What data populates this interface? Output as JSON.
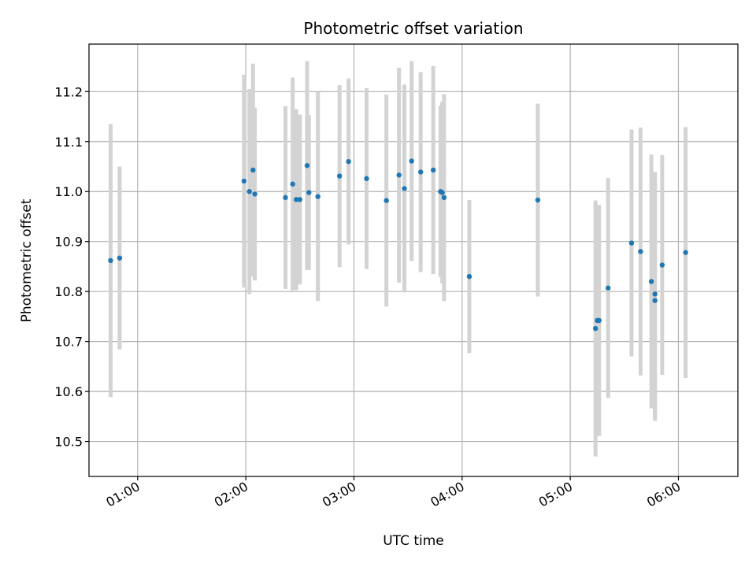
{
  "chart_data": {
    "type": "scatter",
    "title": "Photometric offset variation",
    "xlabel": "UTC time",
    "ylabel": "Photometric offset",
    "x_ticks": [
      "01:00",
      "02:00",
      "03:00",
      "04:00",
      "05:00",
      "06:00"
    ],
    "y_ticks": [
      "10.5",
      "10.6",
      "10.7",
      "10.8",
      "10.9",
      "11.0",
      "11.1",
      "11.2"
    ],
    "xlim": [
      "00:33",
      "06:33"
    ],
    "ylim": [
      10.43,
      11.295
    ],
    "grid": true,
    "colors": {
      "point": "#1f77b4",
      "errorbar": "#d3d3d3",
      "grid": "#b0b0b0"
    },
    "points": [
      {
        "x": "00:45",
        "y": 10.862,
        "err": 0.273
      },
      {
        "x": "00:50",
        "y": 10.867,
        "err": 0.183
      },
      {
        "x": "01:59",
        "y": 11.021,
        "err": 0.213
      },
      {
        "x": "02:02",
        "y": 11.0,
        "err": 0.205
      },
      {
        "x": "02:04",
        "y": 11.043,
        "err": 0.213
      },
      {
        "x": "02:05",
        "y": 10.995,
        "err": 0.173
      },
      {
        "x": "02:22",
        "y": 10.988,
        "err": 0.183
      },
      {
        "x": "02:26",
        "y": 11.015,
        "err": 0.213
      },
      {
        "x": "02:28",
        "y": 10.984,
        "err": 0.181
      },
      {
        "x": "02:30",
        "y": 10.984,
        "err": 0.17
      },
      {
        "x": "02:34",
        "y": 11.052,
        "err": 0.209
      },
      {
        "x": "02:35",
        "y": 10.998,
        "err": 0.155
      },
      {
        "x": "02:40",
        "y": 10.99,
        "err": 0.209
      },
      {
        "x": "02:52",
        "y": 11.031,
        "err": 0.182
      },
      {
        "x": "02:57",
        "y": 11.06,
        "err": 0.166
      },
      {
        "x": "03:07",
        "y": 11.026,
        "err": 0.181
      },
      {
        "x": "03:18",
        "y": 10.982,
        "err": 0.212
      },
      {
        "x": "03:25",
        "y": 11.033,
        "err": 0.215
      },
      {
        "x": "03:28",
        "y": 11.006,
        "err": 0.208
      },
      {
        "x": "03:32",
        "y": 11.061,
        "err": 0.2
      },
      {
        "x": "03:37",
        "y": 11.039,
        "err": 0.2
      },
      {
        "x": "03:44",
        "y": 11.043,
        "err": 0.208
      },
      {
        "x": "03:48",
        "y": 11.0,
        "err": 0.172
      },
      {
        "x": "03:49",
        "y": 10.998,
        "err": 0.182
      },
      {
        "x": "03:50",
        "y": 10.988,
        "err": 0.207
      },
      {
        "x": "04:04",
        "y": 10.83,
        "err": 0.153
      },
      {
        "x": "04:42",
        "y": 10.983,
        "err": 0.193
      },
      {
        "x": "05:14",
        "y": 10.726,
        "err": 0.256
      },
      {
        "x": "05:15",
        "y": 10.742,
        "err": 0.23
      },
      {
        "x": "05:16",
        "y": 10.742,
        "err": 0.231
      },
      {
        "x": "05:21",
        "y": 10.807,
        "err": 0.22
      },
      {
        "x": "05:34",
        "y": 10.897,
        "err": 0.227
      },
      {
        "x": "05:39",
        "y": 10.88,
        "err": 0.248
      },
      {
        "x": "05:45",
        "y": 10.82,
        "err": 0.254
      },
      {
        "x": "05:47",
        "y": 10.795,
        "err": 0.244
      },
      {
        "x": "05:47",
        "y": 10.782,
        "err": 0.241
      },
      {
        "x": "05:51",
        "y": 10.853,
        "err": 0.22
      },
      {
        "x": "06:04",
        "y": 10.878,
        "err": 0.251
      }
    ]
  }
}
